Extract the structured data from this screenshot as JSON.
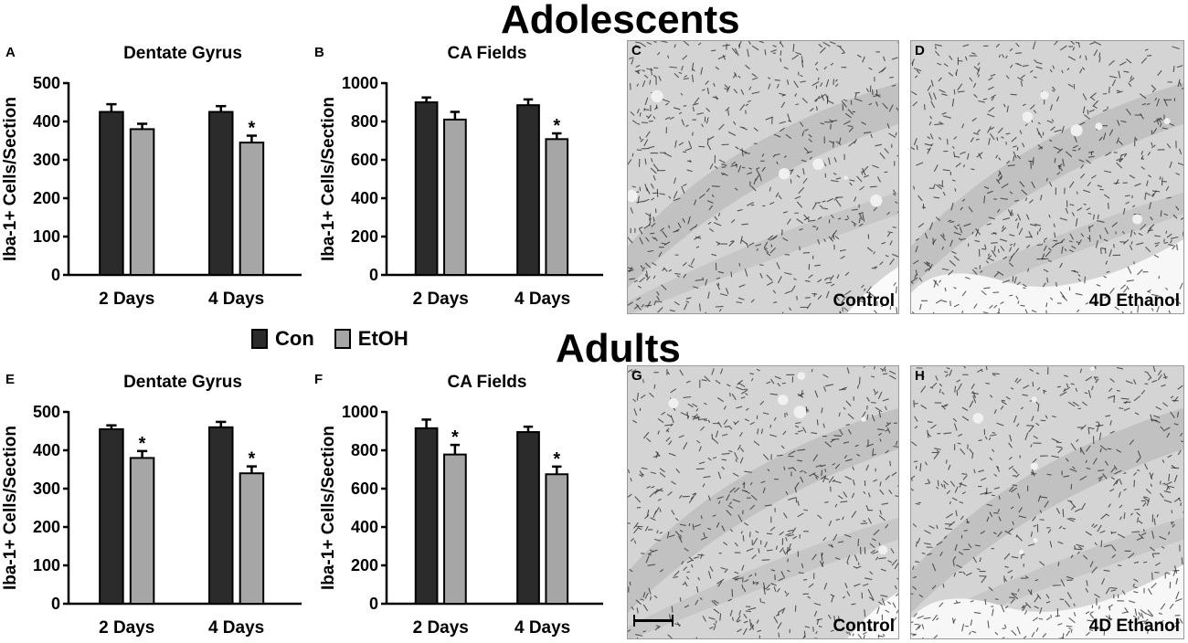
{
  "figure": {
    "title_top": "Adolescents",
    "title_bottom": "Adults",
    "legend": [
      {
        "label": "Con",
        "color": "#2b2b2b"
      },
      {
        "label": "EtOH",
        "color": "#a6a6a6"
      }
    ]
  },
  "chart_data": [
    {
      "panel": "A",
      "type": "bar",
      "title": "Dentate  Gyrus",
      "ylabel": "Iba-1+ Cells/Section",
      "ylim": [
        0,
        500
      ],
      "yticks": [
        0,
        100,
        200,
        300,
        400,
        500
      ],
      "categories": [
        "2 Days",
        "4 Days"
      ],
      "series": [
        {
          "name": "Con",
          "color": "#2b2b2b",
          "values": [
            425,
            425
          ],
          "errors": [
            20,
            15
          ],
          "sig": [
            false,
            false
          ]
        },
        {
          "name": "EtOH",
          "color": "#a6a6a6",
          "values": [
            380,
            345
          ],
          "errors": [
            14,
            18
          ],
          "sig": [
            false,
            true
          ]
        }
      ]
    },
    {
      "panel": "B",
      "type": "bar",
      "title": "CA Fields",
      "ylabel": "Iba-1+ Cells/Section",
      "ylim": [
        0,
        1000
      ],
      "yticks": [
        0,
        200,
        400,
        600,
        800,
        1000
      ],
      "categories": [
        "2 Days",
        "4 Days"
      ],
      "series": [
        {
          "name": "Con",
          "color": "#2b2b2b",
          "values": [
            900,
            885
          ],
          "errors": [
            25,
            30
          ],
          "sig": [
            false,
            false
          ]
        },
        {
          "name": "EtOH",
          "color": "#a6a6a6",
          "values": [
            810,
            708
          ],
          "errors": [
            40,
            30
          ],
          "sig": [
            false,
            true
          ]
        }
      ]
    },
    {
      "panel": "E",
      "type": "bar",
      "title": "Dentate  Gyrus",
      "ylabel": "Iba-1+ Cells/Section",
      "ylim": [
        0,
        500
      ],
      "yticks": [
        0,
        100,
        200,
        300,
        400,
        500
      ],
      "categories": [
        "2 Days",
        "4 Days"
      ],
      "series": [
        {
          "name": "Con",
          "color": "#2b2b2b",
          "values": [
            455,
            460
          ],
          "errors": [
            10,
            14
          ],
          "sig": [
            false,
            false
          ]
        },
        {
          "name": "EtOH",
          "color": "#a6a6a6",
          "values": [
            380,
            340
          ],
          "errors": [
            18,
            18
          ],
          "sig": [
            true,
            true
          ]
        }
      ]
    },
    {
      "panel": "F",
      "type": "bar",
      "title": "CA Fields",
      "ylabel": "Iba-1+ Cells/Section",
      "ylim": [
        0,
        1000
      ],
      "yticks": [
        0,
        200,
        400,
        600,
        800,
        1000
      ],
      "categories": [
        "2 Days",
        "4 Days"
      ],
      "series": [
        {
          "name": "Con",
          "color": "#2b2b2b",
          "values": [
            915,
            895
          ],
          "errors": [
            45,
            28
          ],
          "sig": [
            false,
            false
          ]
        },
        {
          "name": "EtOH",
          "color": "#a6a6a6",
          "values": [
            778,
            675
          ],
          "errors": [
            50,
            40
          ],
          "sig": [
            true,
            true
          ]
        }
      ]
    }
  ],
  "sig_marker": "*",
  "micrographs": [
    {
      "panel": "C",
      "caption": "Control",
      "scalebar": false
    },
    {
      "panel": "D",
      "caption": "4D Ethanol",
      "scalebar": false
    },
    {
      "panel": "G",
      "caption": "Control",
      "scalebar": true
    },
    {
      "panel": "H",
      "caption": "4D Ethanol",
      "scalebar": true
    }
  ]
}
